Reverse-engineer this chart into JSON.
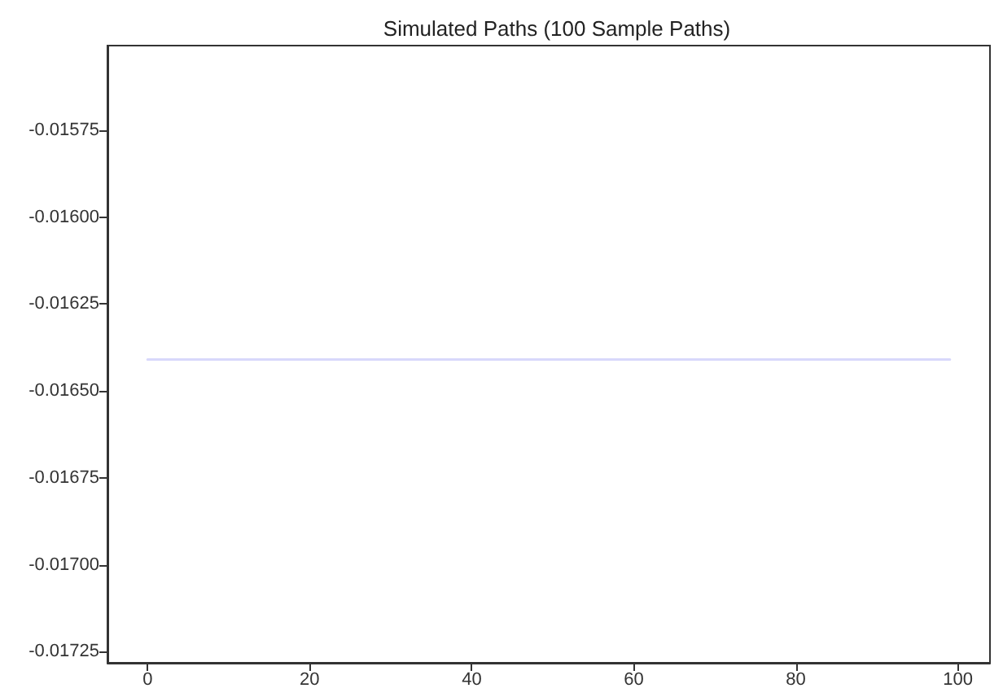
{
  "chart_data": {
    "type": "line",
    "title": "Simulated Paths (100 Sample Paths)",
    "x": [
      0,
      99
    ],
    "values": [
      -0.01641,
      -0.01641
    ],
    "color": "#d8d8fb",
    "xlim": [
      -4.95,
      103.95
    ],
    "xticks": [
      0,
      20,
      40,
      60,
      80,
      100
    ],
    "ylim": [
      -0.017282,
      -0.015507
    ],
    "yticks": [
      -0.01575,
      {
        "value": -0.016,
        "label": "-0.01600"
      },
      -0.01625,
      {
        "value": -0.0165,
        "label": "-0.01650"
      },
      -0.01675,
      {
        "value": -0.017,
        "label": "-0.01700"
      },
      -0.01725
    ]
  }
}
